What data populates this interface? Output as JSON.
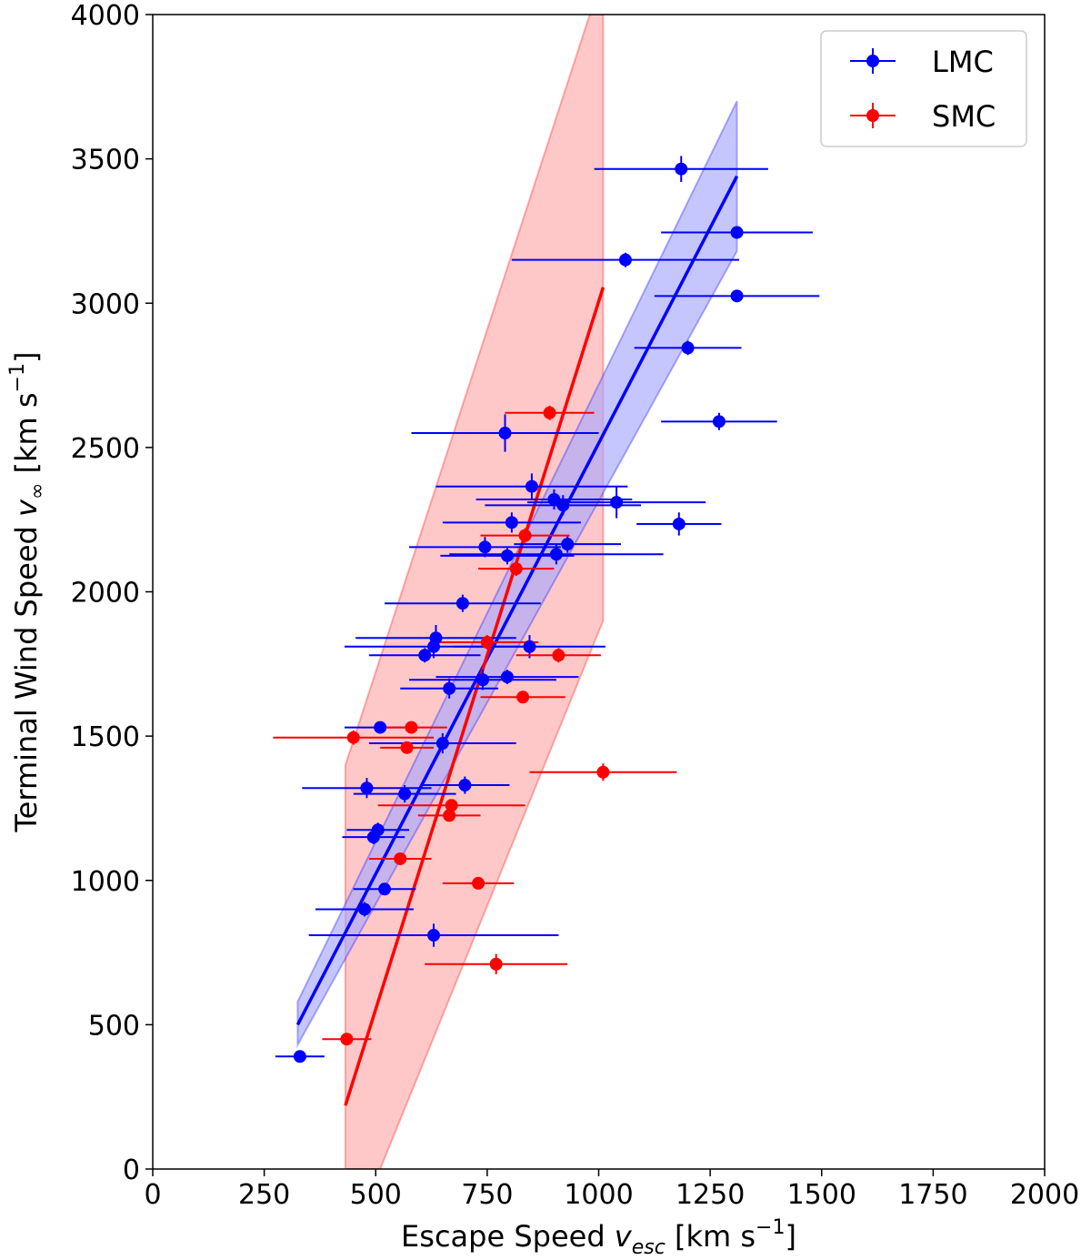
{
  "chart_data": {
    "type": "scatter",
    "xlabel": "Escape Speed v_esc [km s⁻¹]",
    "ylabel": "Terminal Wind Speed v_∞ [km s⁻¹]",
    "xlabel_parts": {
      "pre": "Escape Speed ",
      "var": "v",
      "sub": "esc",
      "post": " [km s",
      "sup": "−1",
      "end": "]"
    },
    "ylabel_parts": {
      "pre": "Terminal Wind Speed ",
      "var": "v",
      "sub": "∞",
      "post": " [km s",
      "sup": "−1",
      "end": "]"
    },
    "xlim": [
      0,
      2000
    ],
    "ylim": [
      0,
      4000
    ],
    "xticks": [
      0,
      250,
      500,
      750,
      1000,
      1250,
      1500,
      1750,
      2000
    ],
    "yticks": [
      0,
      500,
      1000,
      1500,
      2000,
      2500,
      3000,
      3500,
      4000
    ],
    "legend_position": "top-right",
    "series": [
      {
        "name": "LMC",
        "color": "#0000ff",
        "fill": "#a8a8ff",
        "fit_line": [
          [
            325,
            500
          ],
          [
            1310,
            3440
          ]
        ],
        "fit_band": [
          [
            325,
            580
          ],
          [
            1310,
            3700
          ],
          [
            1310,
            3180
          ],
          [
            325,
            430
          ]
        ],
        "points": [
          {
            "x": 330,
            "y": 390,
            "xerr": 55,
            "yerr": 15
          },
          {
            "x": 475,
            "y": 900,
            "xerr": 110,
            "yerr": 25
          },
          {
            "x": 520,
            "y": 970,
            "xerr": 70,
            "yerr": 20
          },
          {
            "x": 630,
            "y": 810,
            "xerr": 280,
            "yerr": 40
          },
          {
            "x": 495,
            "y": 1150,
            "xerr": 70,
            "yerr": 25
          },
          {
            "x": 505,
            "y": 1175,
            "xerr": 70,
            "yerr": 25
          },
          {
            "x": 480,
            "y": 1320,
            "xerr": 145,
            "yerr": 35
          },
          {
            "x": 565,
            "y": 1300,
            "xerr": 115,
            "yerr": 30
          },
          {
            "x": 700,
            "y": 1330,
            "xerr": 100,
            "yerr": 30
          },
          {
            "x": 510,
            "y": 1530,
            "xerr": 80,
            "yerr": 20
          },
          {
            "x": 650,
            "y": 1475,
            "xerr": 165,
            "yerr": 35
          },
          {
            "x": 665,
            "y": 1665,
            "xerr": 110,
            "yerr": 35
          },
          {
            "x": 740,
            "y": 1695,
            "xerr": 165,
            "yerr": 35
          },
          {
            "x": 795,
            "y": 1705,
            "xerr": 160,
            "yerr": 25
          },
          {
            "x": 610,
            "y": 1780,
            "xerr": 125,
            "yerr": 25
          },
          {
            "x": 630,
            "y": 1810,
            "xerr": 200,
            "yerr": 40
          },
          {
            "x": 635,
            "y": 1840,
            "xerr": 180,
            "yerr": 45
          },
          {
            "x": 845,
            "y": 1810,
            "xerr": 170,
            "yerr": 40
          },
          {
            "x": 695,
            "y": 1960,
            "xerr": 175,
            "yerr": 30
          },
          {
            "x": 745,
            "y": 2155,
            "xerr": 170,
            "yerr": 35
          },
          {
            "x": 795,
            "y": 2125,
            "xerr": 150,
            "yerr": 30
          },
          {
            "x": 805,
            "y": 2240,
            "xerr": 155,
            "yerr": 35
          },
          {
            "x": 850,
            "y": 2365,
            "xerr": 215,
            "yerr": 45
          },
          {
            "x": 900,
            "y": 2320,
            "xerr": 175,
            "yerr": 35
          },
          {
            "x": 920,
            "y": 2300,
            "xerr": 175,
            "yerr": 35
          },
          {
            "x": 905,
            "y": 2130,
            "xerr": 240,
            "yerr": 35
          },
          {
            "x": 930,
            "y": 2165,
            "xerr": 120,
            "yerr": 30
          },
          {
            "x": 1040,
            "y": 2310,
            "xerr": 200,
            "yerr": 55
          },
          {
            "x": 1180,
            "y": 2235,
            "xerr": 95,
            "yerr": 40
          },
          {
            "x": 790,
            "y": 2550,
            "xerr": 210,
            "yerr": 65
          },
          {
            "x": 1270,
            "y": 2590,
            "xerr": 130,
            "yerr": 30
          },
          {
            "x": 1200,
            "y": 2845,
            "xerr": 120,
            "yerr": 25
          },
          {
            "x": 1060,
            "y": 3150,
            "xerr": 255,
            "yerr": 25
          },
          {
            "x": 1310,
            "y": 3025,
            "xerr": 185,
            "yerr": 20
          },
          {
            "x": 1310,
            "y": 3245,
            "xerr": 170,
            "yerr": 20
          },
          {
            "x": 1185,
            "y": 3465,
            "xerr": 195,
            "yerr": 45
          }
        ]
      },
      {
        "name": "SMC",
        "color": "#ff0000",
        "fill": "#ffaaaa",
        "fit_line": [
          [
            432,
            220
          ],
          [
            1010,
            3055
          ]
        ],
        "fit_band": [
          [
            432,
            0
          ],
          [
            432,
            1400
          ],
          [
            980,
            4000
          ],
          [
            1010,
            4000
          ],
          [
            1010,
            1900
          ],
          [
            510,
            0
          ]
        ],
        "points": [
          {
            "x": 435,
            "y": 450,
            "xerr": 55,
            "yerr": 15
          },
          {
            "x": 770,
            "y": 710,
            "xerr": 160,
            "yerr": 35
          },
          {
            "x": 730,
            "y": 990,
            "xerr": 80,
            "yerr": 20
          },
          {
            "x": 555,
            "y": 1075,
            "xerr": 70,
            "yerr": 20
          },
          {
            "x": 665,
            "y": 1225,
            "xerr": 70,
            "yerr": 20
          },
          {
            "x": 670,
            "y": 1260,
            "xerr": 165,
            "yerr": 20
          },
          {
            "x": 1010,
            "y": 1375,
            "xerr": 165,
            "yerr": 30
          },
          {
            "x": 450,
            "y": 1495,
            "xerr": 180,
            "yerr": 25
          },
          {
            "x": 570,
            "y": 1460,
            "xerr": 60,
            "yerr": 20
          },
          {
            "x": 580,
            "y": 1530,
            "xerr": 80,
            "yerr": 20
          },
          {
            "x": 830,
            "y": 1635,
            "xerr": 95,
            "yerr": 20
          },
          {
            "x": 750,
            "y": 1825,
            "xerr": 115,
            "yerr": 25
          },
          {
            "x": 910,
            "y": 1780,
            "xerr": 95,
            "yerr": 25
          },
          {
            "x": 815,
            "y": 2080,
            "xerr": 85,
            "yerr": 25
          },
          {
            "x": 835,
            "y": 2195,
            "xerr": 100,
            "yerr": 25
          },
          {
            "x": 890,
            "y": 2620,
            "xerr": 100,
            "yerr": 25
          }
        ]
      }
    ]
  }
}
